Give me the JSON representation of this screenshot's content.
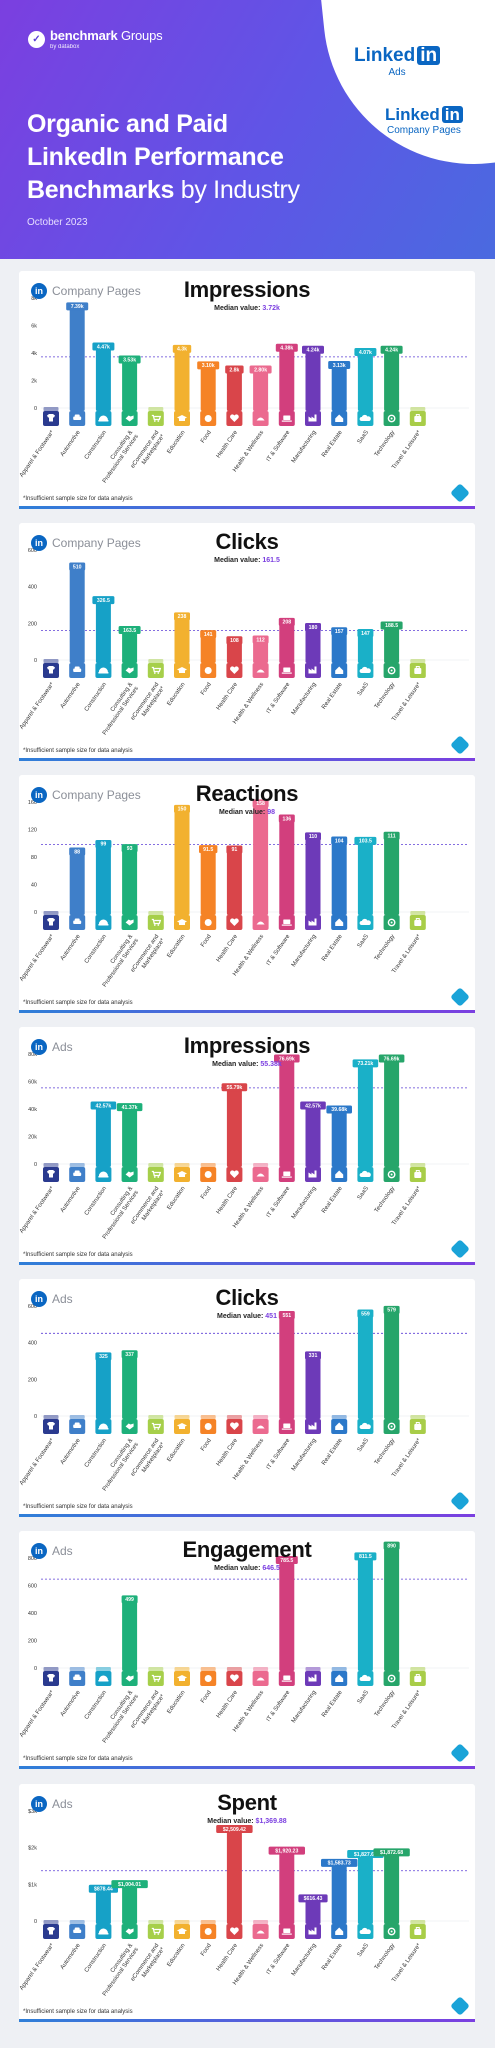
{
  "header": {
    "logo_brand": "benchmark",
    "logo_groups": "Groups",
    "logo_by": "by databox",
    "title_line1": "Organic and Paid",
    "title_line2": "LinkedIn Performance",
    "title_line3_bold": "Benchmarks",
    "title_line3_light": "by Industry",
    "date": "October 2023",
    "linkedin_word": "Linked",
    "linkedin_box": "in",
    "logo1_sub": "Ads",
    "logo2_sub": "Company Pages"
  },
  "colors": {
    "accent": "#7b3fe0",
    "linkedin": "#0a66c2",
    "industries": [
      "#2a3a8f",
      "#3f7fc9",
      "#16a1c7",
      "#1db07a",
      "#a6cf4a",
      "#f2b12f",
      "#f58326",
      "#d9454a",
      "#eb6a8f",
      "#d23f7d",
      "#6d3ab8",
      "#2b78c9",
      "#1ab0c8",
      "#26a56a",
      "#a8cd48"
    ]
  },
  "industries": [
    "Apparel & Footwear*",
    "Automotive",
    "Construction",
    "Consulting & Professional Services",
    "eCommerce and Marketplace*",
    "Education",
    "Food",
    "Health Care",
    "Health & Wellness",
    "IT & Software",
    "Manufacturing",
    "Real Estate",
    "SaaS",
    "Technology",
    "Travel & Leisure*"
  ],
  "industry_icons": [
    "shirt-icon",
    "car-icon",
    "hardhat-icon",
    "handshake-icon",
    "cart-icon",
    "graduation-cap-icon",
    "food-icon",
    "heart-pulse-icon",
    "wellness-icon",
    "laptop-icon",
    "factory-icon",
    "house-icon",
    "cloud-icon",
    "tech-icon",
    "luggage-icon"
  ],
  "chart_data": [
    {
      "type": "bar",
      "source": "Company Pages",
      "title": "Impressions",
      "median_label": "Median value:",
      "median_display": "3.72k",
      "median": 3720,
      "ylim": [
        0,
        8000
      ],
      "yticks": [
        0,
        2000,
        4000,
        6000,
        8000
      ],
      "ytick_labels": [
        "0",
        "2k",
        "4k",
        "6k",
        "8k"
      ],
      "values": [
        null,
        7390,
        4470,
        3530,
        null,
        4300,
        3100,
        2800,
        2800,
        4380,
        4240,
        3130,
        4070,
        4240,
        null
      ],
      "labels": [
        "",
        "7.39k",
        "4.47k",
        "3.53k",
        "",
        "4.3k",
        "3.10k",
        "2.8k",
        "2.80k",
        "4.38k",
        "4.24k",
        "3.13k",
        "4.07k",
        "4.24k",
        ""
      ],
      "footnote": "*Insufficient sample size for data analysis"
    },
    {
      "type": "bar",
      "source": "Company Pages",
      "title": "Clicks",
      "median_label": "Median value:",
      "median_display": "161.5",
      "median": 161.5,
      "ylim": [
        0,
        600
      ],
      "yticks": [
        0,
        200,
        400,
        600
      ],
      "ytick_labels": [
        "0",
        "200",
        "400",
        "600"
      ],
      "values": [
        null,
        510,
        326.5,
        163.5,
        null,
        238,
        141,
        108,
        112,
        208,
        180,
        157,
        147,
        188.5,
        null
      ],
      "labels": [
        "",
        "510",
        "326.5",
        "163.5",
        "",
        "238",
        "141",
        "108",
        "112",
        "208",
        "180",
        "157",
        "147",
        "188.5",
        ""
      ],
      "footnote": "*Insufficient sample size for data analysis"
    },
    {
      "type": "bar",
      "source": "Company Pages",
      "title": "Reactions",
      "median_label": "Median value:",
      "median_display": "98",
      "median": 98,
      "ylim": [
        0,
        160
      ],
      "yticks": [
        0,
        40,
        80,
        120,
        160
      ],
      "ytick_labels": [
        "0",
        "40",
        "80",
        "120",
        "160"
      ],
      "values": [
        null,
        88,
        99,
        93,
        null,
        150,
        91.5,
        91,
        158,
        136,
        110,
        104,
        103.5,
        111,
        null
      ],
      "labels": [
        "",
        "88",
        "99",
        "93",
        "",
        "150",
        "91.5",
        "91",
        "158",
        "136",
        "110",
        "104",
        "103.5",
        "111",
        ""
      ],
      "footnote": "*Insufficient sample size for data analysis"
    },
    {
      "type": "bar",
      "source": "Ads",
      "title": "Impressions",
      "median_label": "Median value:",
      "median_display": "55.38k",
      "median": 55380,
      "ylim": [
        0,
        80000
      ],
      "yticks": [
        0,
        20000,
        40000,
        60000,
        80000
      ],
      "ytick_labels": [
        "0",
        "20k",
        "40k",
        "60k",
        "80k"
      ],
      "values": [
        null,
        null,
        42570,
        41370,
        null,
        null,
        null,
        55790,
        null,
        76690,
        42570,
        39680,
        73210,
        76690,
        null
      ],
      "labels": [
        "",
        "",
        "42.57k",
        "41.37k",
        "",
        "",
        "",
        "55.79k",
        "",
        "76.69k",
        "42.57k",
        "39.68k",
        "73.21k",
        "76.69k",
        ""
      ],
      "footnote": "*Insufficient sample size for data analysis"
    },
    {
      "type": "bar",
      "source": "Ads",
      "title": "Clicks",
      "median_label": "Median value:",
      "median_display": "451",
      "median": 451,
      "ylim": [
        0,
        600
      ],
      "yticks": [
        0,
        200,
        400,
        600
      ],
      "ytick_labels": [
        "0",
        "200",
        "400",
        "600"
      ],
      "values": [
        null,
        null,
        325,
        337,
        null,
        null,
        null,
        null,
        null,
        551,
        331,
        null,
        559,
        579,
        null
      ],
      "labels": [
        "",
        "",
        "325",
        "337",
        "",
        "",
        "",
        "",
        "",
        "551",
        "331",
        "",
        "559",
        "579",
        ""
      ],
      "footnote": "*Insufficient sample size for data analysis"
    },
    {
      "type": "bar",
      "source": "Ads",
      "title": "Engagement",
      "median_label": "Median value:",
      "median_display": "646.5",
      "median": 646.5,
      "ylim": [
        0,
        800
      ],
      "yticks": [
        0,
        200,
        400,
        600,
        800
      ],
      "ytick_labels": [
        "0",
        "200",
        "400",
        "600",
        "800"
      ],
      "values": [
        null,
        null,
        null,
        499,
        null,
        null,
        null,
        null,
        null,
        785.5,
        null,
        null,
        811.5,
        890,
        null
      ],
      "labels": [
        "",
        "",
        "",
        "499",
        "",
        "",
        "",
        "",
        "",
        "785.5",
        "",
        "",
        "811.5",
        "890",
        ""
      ],
      "footnote": "*Insufficient sample size for data analysis"
    },
    {
      "type": "bar",
      "source": "Ads",
      "title": "Spent",
      "median_label": "Median value:",
      "median_display": "$1,369.88",
      "median": 1369.88,
      "ylim": [
        0,
        3000
      ],
      "yticks": [
        0,
        1000,
        2000,
        3000
      ],
      "ytick_labels": [
        "0",
        "$1k",
        "$2k",
        "$3k"
      ],
      "values": [
        null,
        null,
        878.44,
        1004.01,
        null,
        null,
        null,
        2509.42,
        null,
        1920.23,
        616.43,
        1583.73,
        1827.68,
        1872.68,
        null
      ],
      "labels": [
        "",
        "",
        "$878.44",
        "$1,004.01",
        "",
        "",
        "",
        "$2,509.42",
        "",
        "$1,920.23",
        "$616.43",
        "$1,583.73",
        "$1,827.68",
        "$1,872.68",
        ""
      ],
      "footnote": "*Insufficient sample size for data analysis"
    }
  ]
}
